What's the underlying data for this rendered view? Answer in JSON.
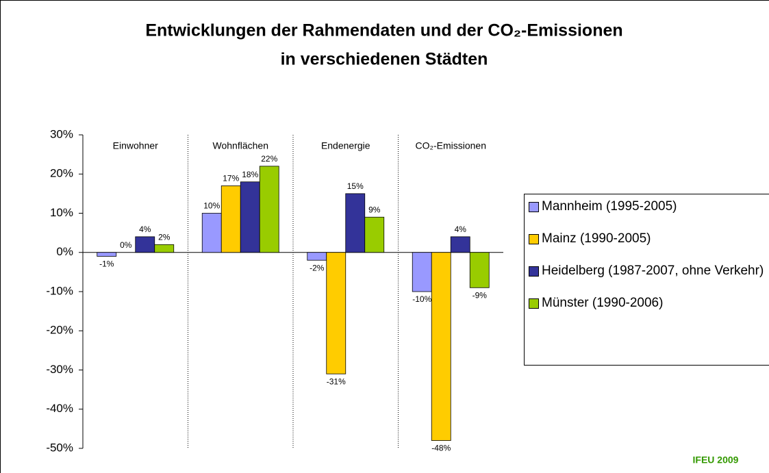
{
  "chart_data": {
    "type": "bar",
    "title": [
      "Entwicklungen der Rahmendaten und der CO₂-Emissionen",
      "in verschiedenen Städten"
    ],
    "categories": [
      "Einwohner",
      "Wohnflächen",
      "Endenergie",
      "CO₂-Emissionen"
    ],
    "series": [
      {
        "name": "Mannheim (1995-2005)",
        "color": "#9999ff",
        "values": [
          -1,
          10,
          -2,
          -10
        ],
        "value_labels": [
          "-1%",
          "10%",
          "-2%",
          "-10%"
        ]
      },
      {
        "name": "Mainz (1990-2005)",
        "color": "#ffcc00",
        "values": [
          0,
          17,
          -31,
          -48
        ],
        "value_labels": [
          "0%",
          "17%",
          "-31%",
          "-48%"
        ]
      },
      {
        "name": "Heidelberg (1987-2007, ohne Verkehr)",
        "color": "#333399",
        "values": [
          4,
          18,
          15,
          4
        ],
        "value_labels": [
          "4%",
          "18%",
          "15%",
          "4%"
        ]
      },
      {
        "name": "Münster (1990-2006)",
        "color": "#99cc00",
        "values": [
          2,
          22,
          9,
          -9
        ],
        "value_labels": [
          "2%",
          "22%",
          "9%",
          "-9%"
        ]
      }
    ],
    "ylim": [
      -50,
      30
    ],
    "yticks": [
      {
        "value": -50,
        "label": "-50%"
      },
      {
        "value": -40,
        "label": "-40%"
      },
      {
        "value": -30,
        "label": "-30%"
      },
      {
        "value": -20,
        "label": "-20%"
      },
      {
        "value": -10,
        "label": "-10%"
      },
      {
        "value": 0,
        "label": "0%"
      },
      {
        "value": 10,
        "label": "10%"
      },
      {
        "value": 20,
        "label": "20%"
      },
      {
        "value": 30,
        "label": "30%"
      }
    ],
    "grid": false,
    "legend": "right",
    "source": "IFEU 2009"
  }
}
